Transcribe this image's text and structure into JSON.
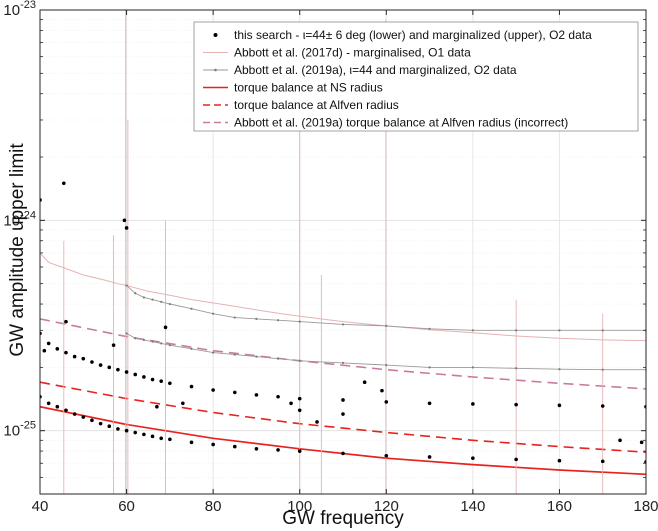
{
  "chart_data": {
    "type": "scatter",
    "xlabel": "GW frequency",
    "ylabel": "GW amplitude upper limit",
    "xlim": [
      40,
      180
    ],
    "ylim": [
      5e-26,
      1e-23
    ],
    "yscale": "log",
    "grid": true,
    "legend_position": "top-right",
    "x_ticks": [
      "40",
      "60",
      "80",
      "100",
      "120",
      "140",
      "160",
      "180"
    ],
    "y_ticks": [
      {
        "base": "10",
        "exp": "-23",
        "value": 1e-23
      },
      {
        "base": "10",
        "exp": "-24",
        "value": 1e-24
      },
      {
        "base": "10",
        "exp": "-25",
        "value": 1e-25
      }
    ],
    "legend": [
      {
        "label": "this search - ι=44± 6 deg (lower) and marginalized (upper), O2 data",
        "style": "dot",
        "color": "#000000"
      },
      {
        "label": "Abbott et al. (2017d) - marginalised, O1 data",
        "style": "thin-line",
        "color": "#e6b3b3"
      },
      {
        "label": "Abbott et al. (2019a), ι=44 and marginalized, O2 data",
        "style": "thin-line-dots",
        "color": "#9a9a9a"
      },
      {
        "label": "torque balance at NS radius",
        "style": "solid",
        "color": "#e8231f"
      },
      {
        "label": "torque balance at Alfven radius",
        "style": "dashed",
        "color": "#e8231f"
      },
      {
        "label": "Abbott et al. (2019a) torque balance at Alfven radius (incorrect)",
        "style": "dashed",
        "color": "#c97aa0"
      }
    ],
    "curves": {
      "ns_radius": {
        "points": [
          [
            40,
            1.3e-25
          ],
          [
            60,
            1.07e-25
          ],
          [
            80,
            9.2e-26
          ],
          [
            100,
            8.2e-26
          ],
          [
            120,
            7.4e-26
          ],
          [
            140,
            6.9e-26
          ],
          [
            160,
            6.5e-26
          ],
          [
            180,
            6.2e-26
          ]
        ]
      },
      "alfven": {
        "points": [
          [
            40,
            1.7e-25
          ],
          [
            60,
            1.42e-25
          ],
          [
            80,
            1.22e-25
          ],
          [
            100,
            1.08e-25
          ],
          [
            120,
            9.8e-26
          ],
          [
            140,
            9e-26
          ],
          [
            160,
            8.4e-26
          ],
          [
            180,
            7.9e-26
          ]
        ]
      },
      "alfven_incorrect": {
        "points": [
          [
            40,
            3.4e-25
          ],
          [
            60,
            2.8e-25
          ],
          [
            80,
            2.4e-25
          ],
          [
            100,
            2.15e-25
          ],
          [
            120,
            1.95e-25
          ],
          [
            140,
            1.8e-25
          ],
          [
            160,
            1.68e-25
          ],
          [
            180,
            1.58e-25
          ]
        ]
      }
    },
    "series": [
      {
        "key": "o1_marginalised",
        "style": "thin-line",
        "points": [
          [
            40,
            7e-25
          ],
          [
            42,
            6.3e-25
          ],
          [
            45,
            6e-25
          ],
          [
            50,
            5.5e-25
          ],
          [
            55,
            5.2e-25
          ],
          [
            58,
            5e-25
          ],
          [
            60,
            4.9e-25
          ],
          [
            65,
            4.6e-25
          ],
          [
            70,
            4.4e-25
          ],
          [
            75,
            4.2e-25
          ],
          [
            80,
            4.05e-25
          ],
          [
            85,
            3.9e-25
          ],
          [
            90,
            3.75e-25
          ],
          [
            95,
            3.62e-25
          ],
          [
            100,
            3.5e-25
          ],
          [
            110,
            3.3e-25
          ],
          [
            120,
            3.15e-25
          ],
          [
            130,
            3.02e-25
          ],
          [
            140,
            2.92e-25
          ],
          [
            150,
            2.82e-25
          ],
          [
            160,
            2.75e-25
          ],
          [
            170,
            2.7e-25
          ],
          [
            180,
            2.68e-25
          ]
        ],
        "spikes": [
          [
            45.5,
            8e-25
          ],
          [
            57,
            8.5e-25
          ],
          [
            59.8,
            1e-23
          ],
          [
            60.3,
            3e-24
          ],
          [
            69,
            1e-24
          ],
          [
            100,
            6e-24
          ],
          [
            105,
            5.5e-25
          ],
          [
            119.9,
            9e-24
          ],
          [
            150,
            4.2e-25
          ],
          [
            170,
            3.6e-25
          ]
        ]
      },
      {
        "key": "o2_2019a_upper",
        "style": "thin-line-dots",
        "points": [
          [
            60,
            4.9e-25
          ],
          [
            62,
            4.5e-25
          ],
          [
            64,
            4.3e-25
          ],
          [
            66,
            4.2e-25
          ],
          [
            68,
            4.1e-25
          ],
          [
            70,
            4e-25
          ],
          [
            75,
            3.8e-25
          ],
          [
            80,
            3.6e-25
          ],
          [
            85,
            3.45e-25
          ],
          [
            90,
            3.4e-25
          ],
          [
            95,
            3.35e-25
          ],
          [
            100,
            3.3e-25
          ],
          [
            110,
            3.2e-25
          ],
          [
            120,
            3.15e-25
          ],
          [
            130,
            3.05e-25
          ],
          [
            140,
            3e-25
          ],
          [
            150,
            3e-25
          ],
          [
            160,
            3e-25
          ],
          [
            170,
            3e-25
          ],
          [
            180,
            3e-25
          ]
        ]
      },
      {
        "key": "o2_2019a_lower",
        "style": "thin-line-dots",
        "points": [
          [
            60,
            2.9e-25
          ],
          [
            62,
            2.75e-25
          ],
          [
            64,
            2.7e-25
          ],
          [
            66,
            2.65e-25
          ],
          [
            68,
            2.6e-25
          ],
          [
            70,
            2.55e-25
          ],
          [
            75,
            2.45e-25
          ],
          [
            80,
            2.35e-25
          ],
          [
            85,
            2.3e-25
          ],
          [
            90,
            2.25e-25
          ],
          [
            95,
            2.2e-25
          ],
          [
            100,
            2.15e-25
          ],
          [
            110,
            2.1e-25
          ],
          [
            120,
            2.05e-25
          ],
          [
            130,
            2e-25
          ],
          [
            140,
            2e-25
          ],
          [
            150,
            1.98e-25
          ],
          [
            160,
            1.96e-25
          ],
          [
            170,
            1.95e-25
          ],
          [
            180,
            1.95e-25
          ]
        ]
      },
      {
        "key": "this_search_marginalized",
        "style": "dot",
        "points": [
          [
            40,
            2.9e-25
          ],
          [
            42,
            2.6e-25
          ],
          [
            44,
            2.45e-25
          ],
          [
            46,
            2.35e-25
          ],
          [
            48,
            2.25e-25
          ],
          [
            50,
            2.2e-25
          ],
          [
            52,
            2.12e-25
          ],
          [
            54,
            2.05e-25
          ],
          [
            56,
            2e-25
          ],
          [
            58,
            1.95e-25
          ],
          [
            60,
            1.9e-25
          ],
          [
            62,
            1.85e-25
          ],
          [
            64,
            1.8e-25
          ],
          [
            66,
            1.75e-25
          ],
          [
            68,
            1.72e-25
          ],
          [
            70,
            1.68e-25
          ],
          [
            75,
            1.62e-25
          ],
          [
            80,
            1.56e-25
          ],
          [
            85,
            1.52e-25
          ],
          [
            90,
            1.48e-25
          ],
          [
            95,
            1.45e-25
          ],
          [
            100,
            1.42e-25
          ],
          [
            110,
            1.4e-25
          ],
          [
            120,
            1.37e-25
          ],
          [
            130,
            1.35e-25
          ],
          [
            140,
            1.34e-25
          ],
          [
            150,
            1.33e-25
          ],
          [
            160,
            1.32e-25
          ],
          [
            170,
            1.31e-25
          ],
          [
            180,
            1.3e-25
          ]
        ]
      },
      {
        "key": "this_search_lower",
        "style": "dot",
        "points": [
          [
            40,
            1.45e-25
          ],
          [
            42,
            1.35e-25
          ],
          [
            44,
            1.3e-25
          ],
          [
            46,
            1.25e-25
          ],
          [
            48,
            1.2e-25
          ],
          [
            50,
            1.16e-25
          ],
          [
            52,
            1.12e-25
          ],
          [
            54,
            1.08e-25
          ],
          [
            56,
            1.05e-25
          ],
          [
            58,
            1.02e-25
          ],
          [
            60,
            1e-25
          ],
          [
            62,
            9.8e-26
          ],
          [
            64,
            9.6e-26
          ],
          [
            66,
            9.4e-26
          ],
          [
            68,
            9.2e-26
          ],
          [
            70,
            9.1e-26
          ],
          [
            75,
            8.8e-26
          ],
          [
            80,
            8.6e-26
          ],
          [
            85,
            8.4e-26
          ],
          [
            90,
            8.2e-26
          ],
          [
            95,
            8.1e-26
          ],
          [
            100,
            8e-26
          ],
          [
            110,
            7.8e-26
          ],
          [
            120,
            7.6e-26
          ],
          [
            130,
            7.5e-26
          ],
          [
            140,
            7.4e-26
          ],
          [
            150,
            7.3e-26
          ],
          [
            160,
            7.2e-26
          ],
          [
            170,
            7.15e-26
          ],
          [
            180,
            7.1e-26
          ]
        ]
      },
      {
        "key": "this_search_outliers",
        "style": "dot",
        "points": [
          [
            40,
            1.25e-24
          ],
          [
            41,
            2.4e-25
          ],
          [
            45.5,
            1.5e-24
          ],
          [
            46,
            3.3e-25
          ],
          [
            59.5,
            1e-24
          ],
          [
            60,
            9.2e-25
          ],
          [
            57,
            2.55e-25
          ],
          [
            69,
            3.1e-25
          ],
          [
            67,
            1.3e-25
          ],
          [
            73,
            1.35e-25
          ],
          [
            98,
            1.35e-25
          ],
          [
            100,
            1.25e-25
          ],
          [
            104,
            1.1e-25
          ],
          [
            110,
            1.2e-25
          ],
          [
            115,
            1.7e-25
          ],
          [
            119,
            1.55e-25
          ],
          [
            174,
            9e-26
          ],
          [
            179,
            8.8e-26
          ]
        ]
      }
    ]
  }
}
